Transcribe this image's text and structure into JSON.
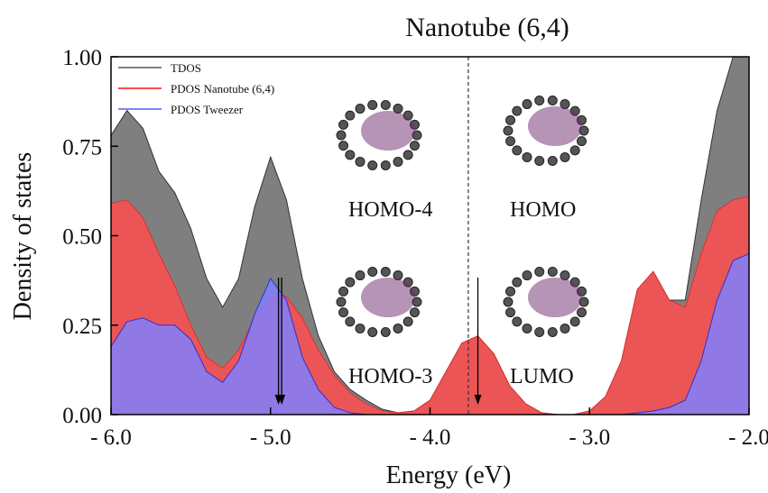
{
  "chart_data": {
    "type": "area",
    "title": "Nanotube (6,4)",
    "x_label": "Energy (eV)",
    "y_label": "Density of states",
    "x": [
      -6.0,
      -5.9,
      -5.8,
      -5.7,
      -5.6,
      -5.5,
      -5.4,
      -5.3,
      -5.2,
      -5.1,
      -5.0,
      -4.9,
      -4.8,
      -4.7,
      -4.6,
      -4.5,
      -4.4,
      -4.3,
      -4.2,
      -4.1,
      -4.0,
      -3.9,
      -3.8,
      -3.7,
      -3.6,
      -3.5,
      -3.4,
      -3.3,
      -3.2,
      -3.1,
      -3.0,
      -2.9,
      -2.8,
      -2.7,
      -2.6,
      -2.5,
      -2.4,
      -2.3,
      -2.2,
      -2.1,
      -2.0
    ],
    "series": [
      {
        "name": "TDOS",
        "color": "#7f7f7f",
        "line_color": "#333333",
        "values": [
          0.78,
          0.85,
          0.8,
          0.68,
          0.62,
          0.52,
          0.38,
          0.3,
          0.38,
          0.58,
          0.72,
          0.6,
          0.38,
          0.22,
          0.12,
          0.07,
          0.04,
          0.015,
          0.005,
          0.01,
          0.04,
          0.12,
          0.2,
          0.22,
          0.17,
          0.08,
          0.03,
          0.005,
          0,
          0,
          0.01,
          0.05,
          0.15,
          0.35,
          0.4,
          0.32,
          0.32,
          0.6,
          0.85,
          1.0,
          1.0
        ]
      },
      {
        "name": "PDOS Nanotube (6,4)",
        "color": "#ff4d4d",
        "line_color": "#e03030",
        "values": [
          0.59,
          0.6,
          0.55,
          0.45,
          0.36,
          0.25,
          0.16,
          0.13,
          0.18,
          0.27,
          0.33,
          0.33,
          0.27,
          0.18,
          0.11,
          0.06,
          0.03,
          0.01,
          0.005,
          0.01,
          0.04,
          0.12,
          0.2,
          0.22,
          0.17,
          0.08,
          0.03,
          0.005,
          0,
          0,
          0.01,
          0.05,
          0.15,
          0.35,
          0.4,
          0.32,
          0.3,
          0.45,
          0.57,
          0.6,
          0.61
        ]
      },
      {
        "name": "PDOS Tweezer",
        "color": "#8080ff",
        "line_color": "#3030d0",
        "values": [
          0.19,
          0.26,
          0.27,
          0.25,
          0.25,
          0.21,
          0.12,
          0.09,
          0.15,
          0.28,
          0.38,
          0.32,
          0.16,
          0.07,
          0.02,
          0.005,
          0,
          0,
          0,
          0,
          0,
          0,
          0,
          0,
          0,
          0,
          0,
          0,
          0,
          0,
          0,
          0,
          0,
          0.005,
          0.01,
          0.02,
          0.04,
          0.15,
          0.32,
          0.43,
          0.45
        ]
      }
    ],
    "xlim": [
      -6,
      -2
    ],
    "ylim": [
      0,
      1
    ],
    "xticks": [
      {
        "value": -6,
        "label": "- 6.0"
      },
      {
        "value": -5,
        "label": "- 5.0"
      },
      {
        "value": -4,
        "label": "- 4.0"
      },
      {
        "value": -3,
        "label": "- 3.0"
      },
      {
        "value": -2,
        "label": "- 2.0"
      }
    ],
    "yticks": [
      {
        "value": 0,
        "label": "0.00"
      },
      {
        "value": 0.25,
        "label": "0.25"
      },
      {
        "value": 0.5,
        "label": "0.50"
      },
      {
        "value": 0.75,
        "label": "0.75"
      },
      {
        "value": 1,
        "label": "1.00"
      }
    ],
    "legend": "upper left",
    "fermi_level": -3.76,
    "arrows": [
      -4.95,
      -4.93,
      -3.7
    ],
    "annotations": [
      "HOMO-4",
      "HOMO",
      "HOMO-3",
      "LUMO"
    ]
  }
}
